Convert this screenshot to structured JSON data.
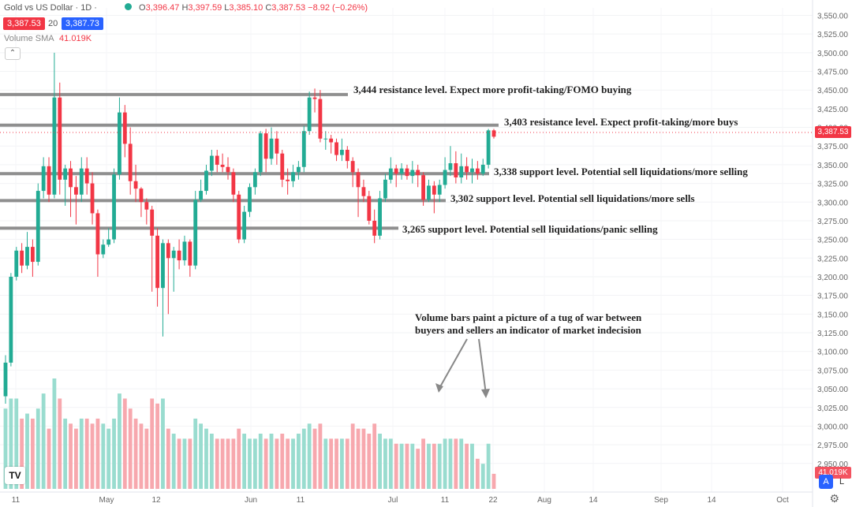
{
  "header": {
    "symbol": "Gold vs US Dollar · 1D · ",
    "ohlc": {
      "o_label": "O",
      "o": "3,396.47",
      "h_label": "H",
      "h": "3,397.59",
      "l_label": "L",
      "l": "3,385.10",
      "c_label": "C",
      "c": "3,387.53",
      "change": "−8.92 (−0.26%)"
    },
    "bid": "3,387.53",
    "spread": "20",
    "ask": "3,387.73",
    "volume_label": "Volume SMA",
    "volume_value": "41.019K",
    "collapse_icon": "chevron-up-icon"
  },
  "annotations": {
    "r3444": "3,444 resistance level. Expect more profit-taking/FOMO buying",
    "r3403": "3,403 resistance level. Expect profit-taking/more buys",
    "s3338": "3,338 support level. Potential sell liquidations/more selling",
    "s3302": "3,302 support level. Potential sell liquidations/more sells",
    "s3265": "3,265 support level. Potential sell liquidations/panic selling",
    "volume_note_1": "Volume bars paint a picture of a tug of war between",
    "volume_note_2": "buyers and sellers an indicator of market indecision"
  },
  "price_axis": {
    "ticks": [
      "3,550.00",
      "3,525.00",
      "3,500.00",
      "3,475.00",
      "3,450.00",
      "3,425.00",
      "3,400.00",
      "3,375.00",
      "3,350.00",
      "3,325.00",
      "3,300.00",
      "3,275.00",
      "3,250.00",
      "3,225.00",
      "3,200.00",
      "3,175.00",
      "3,150.00",
      "3,125.00",
      "3,100.00",
      "3,075.00",
      "3,050.00",
      "3,025.00",
      "3,000.00",
      "2,975.00",
      "2,950.00"
    ],
    "last_price": "3,387.53",
    "volume_tag": "41.019K",
    "auto_label": "A",
    "log_label": "L"
  },
  "time_axis": {
    "labels": [
      "11",
      "May",
      "12",
      "Jun",
      "11",
      "Jul",
      "11",
      "22",
      "Aug",
      "14",
      "Sep",
      "14",
      "Oct"
    ]
  },
  "colors": {
    "up": "#22ab94",
    "down": "#f23645",
    "vol_up": "#99dccf",
    "vol_down": "#f7a8ae",
    "level_line": "#8f8f8f",
    "brand": "#2962ff"
  },
  "chart_data": {
    "type": "candlestick",
    "title": "Gold vs US Dollar · 1D",
    "ylim": [
      2935,
      3560
    ],
    "levels": [
      3444,
      3403,
      3338,
      3302,
      3265
    ],
    "last_price": 3387.53,
    "candles": [
      [
        3040,
        3085,
        3030,
        3095,
        800
      ],
      [
        3085,
        3200,
        3080,
        3205,
        900
      ],
      [
        3200,
        3235,
        3195,
        3240,
        900
      ],
      [
        3235,
        3215,
        3205,
        3245,
        700
      ],
      [
        3215,
        3240,
        3210,
        3260,
        750
      ],
      [
        3240,
        3220,
        3200,
        3250,
        700
      ],
      [
        3220,
        3315,
        3215,
        3325,
        800
      ],
      [
        3315,
        3348,
        3305,
        3360,
        950
      ],
      [
        3348,
        3310,
        3300,
        3360,
        600
      ],
      [
        3310,
        3440,
        3305,
        3500,
        1100
      ],
      [
        3440,
        3330,
        3310,
        3460,
        900
      ],
      [
        3330,
        3345,
        3295,
        3350,
        700
      ],
      [
        3345,
        3320,
        3280,
        3355,
        650
      ],
      [
        3320,
        3310,
        3270,
        3335,
        600
      ],
      [
        3310,
        3345,
        3300,
        3360,
        700
      ],
      [
        3345,
        3325,
        3310,
        3360,
        700
      ],
      [
        3325,
        3285,
        3270,
        3340,
        650
      ],
      [
        3285,
        3230,
        3200,
        3290,
        700
      ],
      [
        3230,
        3243,
        3225,
        3250,
        650
      ],
      [
        3243,
        3250,
        3240,
        3265,
        600
      ],
      [
        3250,
        3337,
        3245,
        3345,
        700
      ],
      [
        3337,
        3420,
        3330,
        3440,
        950
      ],
      [
        3420,
        3378,
        3360,
        3430,
        900
      ],
      [
        3378,
        3328,
        3310,
        3400,
        800
      ],
      [
        3328,
        3318,
        3300,
        3350,
        700
      ],
      [
        3318,
        3300,
        3280,
        3320,
        650
      ],
      [
        3300,
        3290,
        3270,
        3305,
        600
      ],
      [
        3290,
        3255,
        3180,
        3295,
        900
      ],
      [
        3255,
        3185,
        3160,
        3265,
        850
      ],
      [
        3185,
        3245,
        3120,
        3250,
        900
      ],
      [
        3245,
        3225,
        3150,
        3250,
        600
      ],
      [
        3225,
        3235,
        3180,
        3240,
        550
      ],
      [
        3235,
        3222,
        3210,
        3250,
        500
      ],
      [
        3222,
        3247,
        3215,
        3255,
        500
      ],
      [
        3247,
        3215,
        3200,
        3250,
        500
      ],
      [
        3215,
        3303,
        3210,
        3315,
        700
      ],
      [
        3303,
        3315,
        3300,
        3330,
        650
      ],
      [
        3315,
        3342,
        3310,
        3350,
        600
      ],
      [
        3342,
        3362,
        3335,
        3370,
        550
      ],
      [
        3362,
        3350,
        3340,
        3370,
        500
      ],
      [
        3350,
        3347,
        3340,
        3365,
        500
      ],
      [
        3347,
        3340,
        3330,
        3360,
        500
      ],
      [
        3340,
        3310,
        3300,
        3345,
        500
      ],
      [
        3310,
        3250,
        3245,
        3315,
        600
      ],
      [
        3250,
        3287,
        3245,
        3295,
        550
      ],
      [
        3287,
        3320,
        3280,
        3325,
        500
      ],
      [
        3320,
        3340,
        3310,
        3345,
        500
      ],
      [
        3340,
        3392,
        3335,
        3395,
        550
      ],
      [
        3392,
        3358,
        3340,
        3398,
        500
      ],
      [
        3358,
        3385,
        3350,
        3400,
        550
      ],
      [
        3385,
        3365,
        3350,
        3395,
        500
      ],
      [
        3365,
        3330,
        3320,
        3370,
        550
      ],
      [
        3330,
        3328,
        3310,
        3345,
        500
      ],
      [
        3328,
        3340,
        3320,
        3350,
        500
      ],
      [
        3340,
        3347,
        3330,
        3355,
        550
      ],
      [
        3347,
        3395,
        3340,
        3402,
        600
      ],
      [
        3395,
        3440,
        3390,
        3448,
        650
      ],
      [
        3440,
        3438,
        3420,
        3452,
        600
      ],
      [
        3438,
        3385,
        3380,
        3450,
        650
      ],
      [
        3385,
        3385,
        3370,
        3395,
        500
      ],
      [
        3385,
        3380,
        3365,
        3390,
        500
      ],
      [
        3380,
        3363,
        3355,
        3385,
        500
      ],
      [
        3363,
        3370,
        3355,
        3385,
        500
      ],
      [
        3370,
        3355,
        3345,
        3375,
        500
      ],
      [
        3355,
        3340,
        3320,
        3360,
        650
      ],
      [
        3340,
        3320,
        3280,
        3345,
        600
      ],
      [
        3320,
        3308,
        3300,
        3330,
        600
      ],
      [
        3308,
        3275,
        3270,
        3315,
        550
      ],
      [
        3275,
        3255,
        3245,
        3290,
        650
      ],
      [
        3255,
        3305,
        3250,
        3315,
        550
      ],
      [
        3305,
        3330,
        3300,
        3338,
        500
      ],
      [
        3330,
        3345,
        3325,
        3360,
        500
      ],
      [
        3345,
        3338,
        3320,
        3350,
        450
      ],
      [
        3338,
        3345,
        3330,
        3352,
        450
      ],
      [
        3345,
        3335,
        3330,
        3350,
        450
      ],
      [
        3335,
        3343,
        3325,
        3355,
        450
      ],
      [
        3343,
        3336,
        3320,
        3350,
        400
      ],
      [
        3336,
        3303,
        3295,
        3340,
        500
      ],
      [
        3303,
        3322,
        3300,
        3330,
        450
      ],
      [
        3322,
        3310,
        3285,
        3328,
        450
      ],
      [
        3310,
        3323,
        3300,
        3330,
        450
      ],
      [
        3323,
        3343,
        3318,
        3360,
        500
      ],
      [
        3343,
        3352,
        3335,
        3375,
        500
      ],
      [
        3352,
        3333,
        3325,
        3368,
        500
      ],
      [
        3333,
        3348,
        3325,
        3365,
        500
      ],
      [
        3348,
        3340,
        3330,
        3360,
        450
      ],
      [
        3340,
        3345,
        3325,
        3358,
        450
      ],
      [
        3345,
        3338,
        3330,
        3355,
        300
      ],
      [
        3338,
        3350,
        3335,
        3358,
        250
      ],
      [
        3350,
        3396,
        3345,
        3398,
        450
      ],
      [
        3396,
        3387.53,
        3385,
        3398,
        150
      ]
    ]
  }
}
